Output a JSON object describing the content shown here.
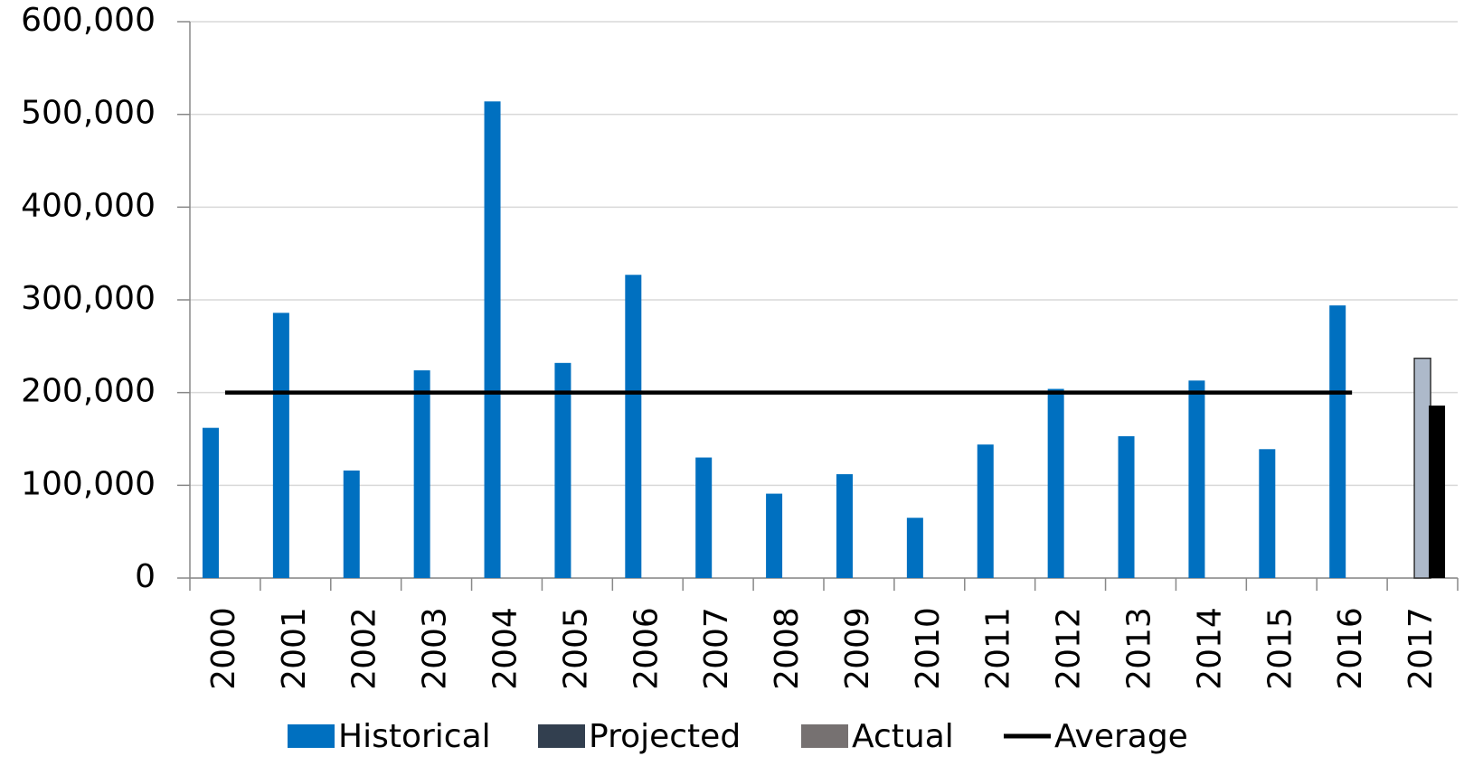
{
  "chart_data": {
    "type": "bar",
    "categories": [
      "2000",
      "2001",
      "2002",
      "2003",
      "2004",
      "2005",
      "2006",
      "2007",
      "2008",
      "2009",
      "2010",
      "2011",
      "2012",
      "2013",
      "2014",
      "2015",
      "2016",
      "2017"
    ],
    "series": [
      {
        "name": "Historical",
        "color": "#0070c0",
        "legend_color": "#0070c0",
        "kind": "bar",
        "values": [
          162000,
          286000,
          116000,
          224000,
          514000,
          232000,
          327000,
          130000,
          91000,
          112000,
          65000,
          144000,
          204000,
          153000,
          213000,
          139000,
          294000,
          null
        ]
      },
      {
        "name": "Projected",
        "color": "#adb9ca",
        "legend_color": "#323f4f",
        "kind": "bar",
        "values": [
          null,
          null,
          null,
          null,
          null,
          null,
          null,
          null,
          null,
          null,
          null,
          null,
          null,
          null,
          null,
          null,
          null,
          237000
        ]
      },
      {
        "name": "Actual",
        "color": "#000000",
        "legend_color": "#767171",
        "kind": "bar",
        "values": [
          null,
          null,
          null,
          null,
          null,
          null,
          null,
          null,
          null,
          null,
          null,
          null,
          null,
          null,
          null,
          null,
          null,
          186000
        ]
      },
      {
        "name": "Average",
        "color": "#000000",
        "legend_color": "#000000",
        "kind": "line",
        "values": [
          200000,
          200000,
          200000,
          200000,
          200000,
          200000,
          200000,
          200000,
          200000,
          200000,
          200000,
          200000,
          200000,
          200000,
          200000,
          200000,
          200000,
          null
        ]
      }
    ],
    "ylim": [
      0,
      600000
    ],
    "yticks": [
      0,
      {
        "value": 100000,
        "label": "100,000"
      },
      {
        "value": 200000,
        "label": "200,000"
      },
      {
        "value": 300000,
        "label": "300,000"
      },
      {
        "value": 400000,
        "label": "400,000"
      },
      {
        "value": 500000,
        "label": "500,000"
      },
      {
        "value": 600000,
        "label": "600,000"
      }
    ],
    "grid": true,
    "legend": "bottom"
  }
}
